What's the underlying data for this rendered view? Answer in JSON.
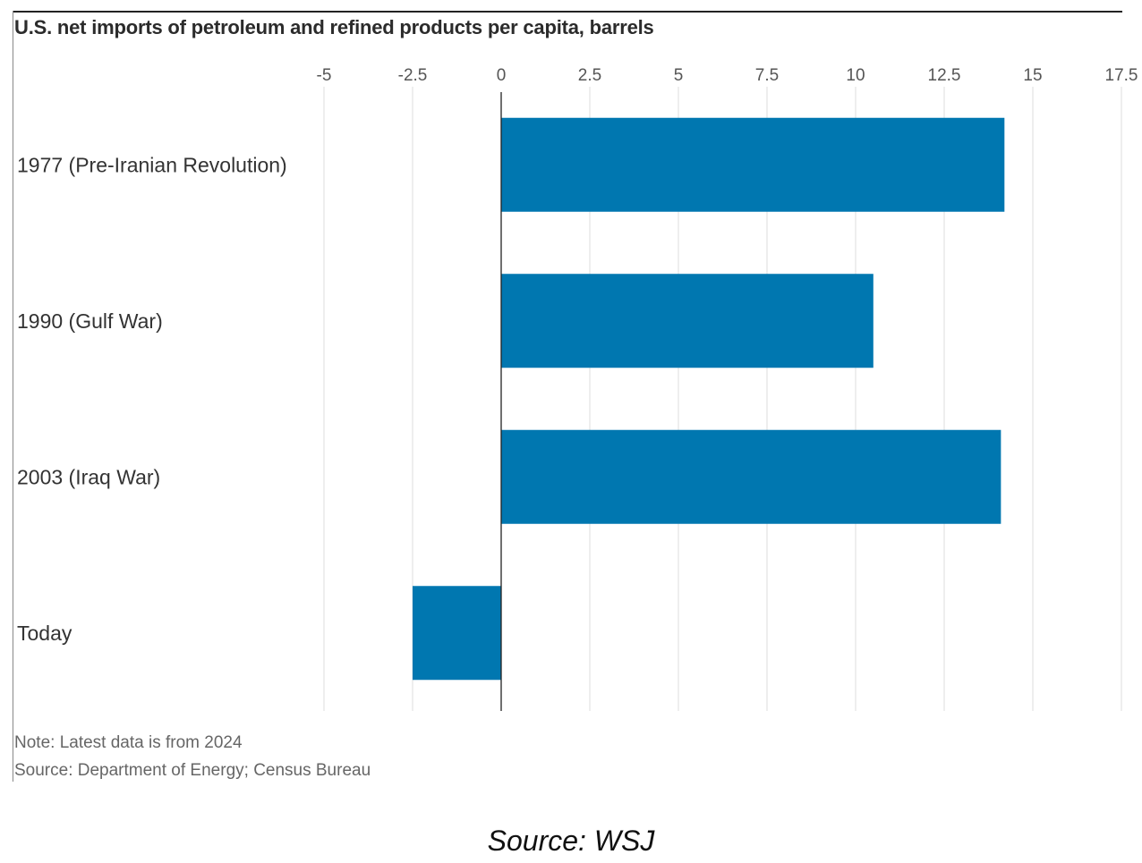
{
  "chart_data": {
    "type": "bar",
    "orientation": "horizontal",
    "title": "U.S. net imports of petroleum and refined products per capita, barrels",
    "categories": [
      "1977 (Pre-Iranian Revolution)",
      "1990 (Gulf War)",
      "2003 (Iraq War)",
      "Today"
    ],
    "values": [
      14.2,
      10.5,
      14.1,
      -2.5
    ],
    "xlim": [
      -5,
      17.5
    ],
    "ticks": [
      -5,
      -2.5,
      0,
      2.5,
      5,
      7.5,
      10,
      12.5,
      15,
      17.5
    ],
    "tick_labels": [
      "-5",
      "-2.5",
      "0",
      "2.5",
      "5",
      "7.5",
      "10",
      "12.5",
      "15",
      "17.5"
    ],
    "xlabel": "",
    "ylabel": "",
    "grid": true,
    "bar_color": "#0077b0",
    "note": "Note: Latest data is from 2024",
    "source": "Source: Department of Energy; Census Bureau"
  },
  "credit": "Source: WSJ"
}
